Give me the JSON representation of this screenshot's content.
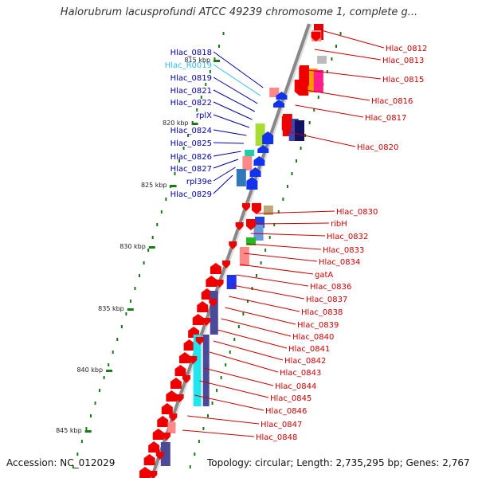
{
  "header": {
    "title": "Halorubrum lacusprofundi ATCC 49239 chromosome 1, complete g..."
  },
  "footer": {
    "accession": "Accession: NC_012029",
    "topology": "Topology: circular; Length: 2,735,295 bp; Genes: 2,767"
  },
  "colors": {
    "backbone": "#888888",
    "ticks": "#1a7a1a",
    "left_label": "#0000aa",
    "right_label": "#cc0000",
    "rna_label": "#33bbee"
  },
  "scale_ticks": [
    "815 kbp",
    "820 kbp",
    "825 kbp",
    "830 kbp",
    "835 kbp",
    "840 kbp",
    "845 kbp"
  ],
  "left_genes": [
    {
      "label": "Hlac_0818",
      "type": "cds"
    },
    {
      "label": "Hlac_R0019",
      "type": "rna"
    },
    {
      "label": "Hlac_0819",
      "type": "cds"
    },
    {
      "label": "Hlac_0821",
      "type": "cds"
    },
    {
      "label": "Hlac_0822",
      "type": "cds"
    },
    {
      "label": "rplX",
      "type": "cds"
    },
    {
      "label": "Hlac_0824",
      "type": "cds"
    },
    {
      "label": "Hlac_0825",
      "type": "cds"
    },
    {
      "label": "Hlac_0826",
      "type": "cds"
    },
    {
      "label": "Hlac_0827",
      "type": "cds"
    },
    {
      "label": "rpl39e",
      "type": "cds"
    },
    {
      "label": "Hlac_0829",
      "type": "cds"
    }
  ],
  "right_genes": [
    {
      "label": "Hlac_0812"
    },
    {
      "label": "Hlac_0813"
    },
    {
      "label": "Hlac_0815"
    },
    {
      "label": "Hlac_0816"
    },
    {
      "label": "Hlac_0817"
    },
    {
      "label": "Hlac_0820"
    },
    {
      "label": "Hlac_0830"
    },
    {
      "label": "ribH"
    },
    {
      "label": "Hlac_0832"
    },
    {
      "label": "Hlac_0833"
    },
    {
      "label": "Hlac_0834"
    },
    {
      "label": "gatA"
    },
    {
      "label": "Hlac_0836"
    },
    {
      "label": "Hlac_0837"
    },
    {
      "label": "Hlac_0838"
    },
    {
      "label": "Hlac_0839"
    },
    {
      "label": "Hlac_0840"
    },
    {
      "label": "Hlac_0841"
    },
    {
      "label": "Hlac_0842"
    },
    {
      "label": "Hlac_0843"
    },
    {
      "label": "Hlac_0844"
    },
    {
      "label": "Hlac_0845"
    },
    {
      "label": "Hlac_0846"
    },
    {
      "label": "Hlac_0847"
    },
    {
      "label": "Hlac_0848"
    }
  ]
}
